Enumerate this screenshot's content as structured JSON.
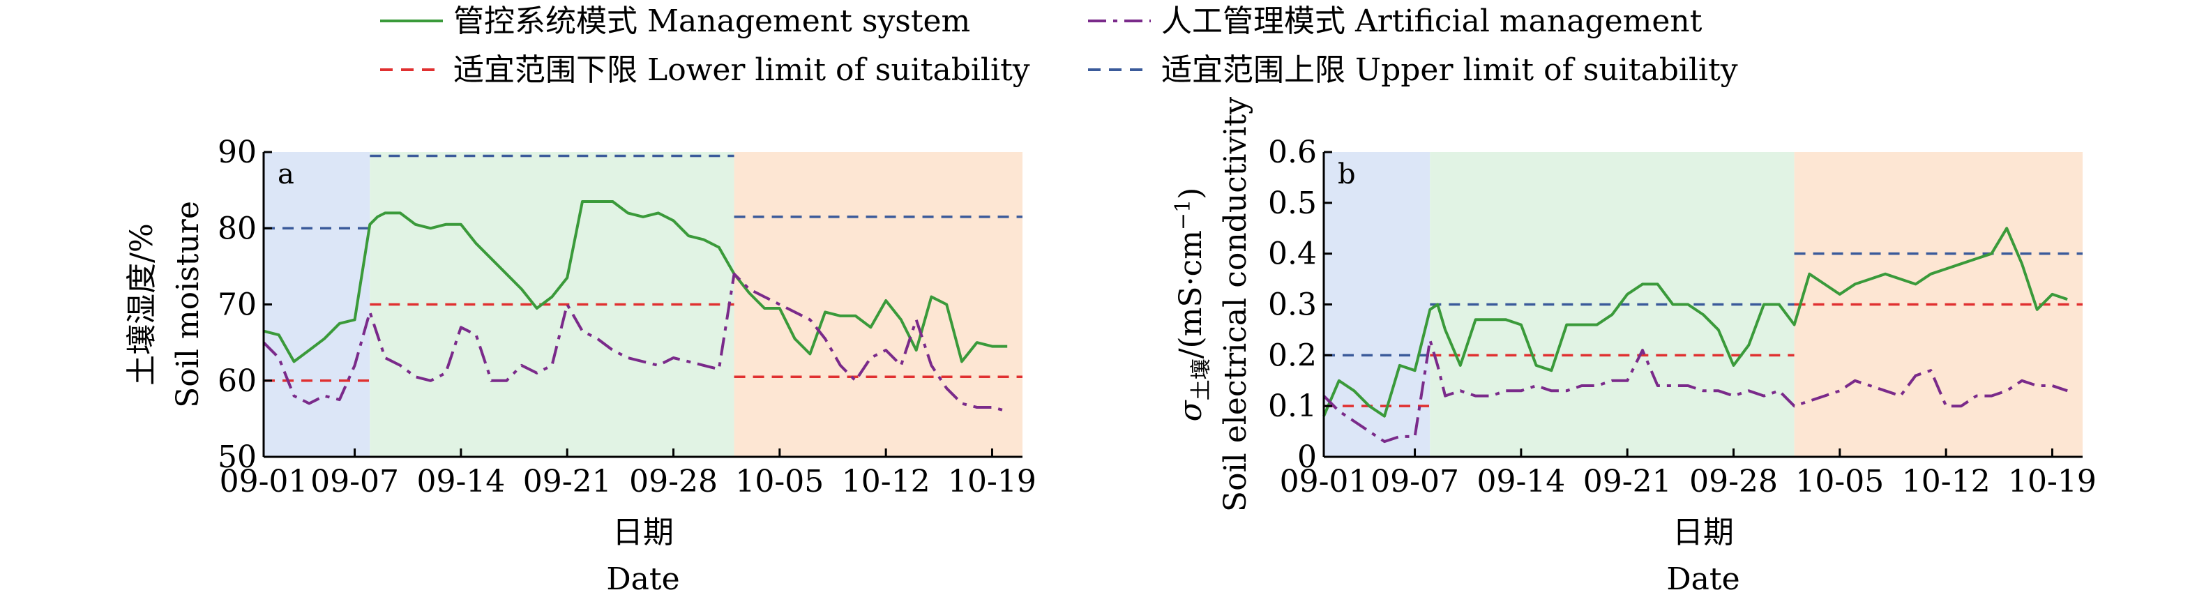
{
  "legend": [
    {
      "label": "管控系统模式  Management system",
      "color": "#3a9a3a",
      "dash": "solid"
    },
    {
      "label": "人工管理模式 Artificial management",
      "color": "#7a2a8a",
      "dash": "dashdot"
    },
    {
      "label": "适宜范围下限 Lower limit of suitability",
      "color": "#e03030",
      "dash": "dashed"
    },
    {
      "label": "适宜范围上限 Upper limit of suitability",
      "color": "#3a5a9a",
      "dash": "dashed"
    }
  ],
  "chart_data": [
    {
      "type": "line",
      "panel_label": "a",
      "ylabel_cn": "土壤湿度/%",
      "ylabel_en": "Soil moisture",
      "xlabel_cn": "日期",
      "xlabel_en": "Date",
      "xlim": [
        0,
        50
      ],
      "ylim": [
        50,
        90
      ],
      "yticks": [
        50,
        60,
        70,
        80,
        90
      ],
      "xticks": [
        0,
        6,
        13,
        20,
        27,
        34,
        41,
        48
      ],
      "xticklabels": [
        "09-01",
        "09-07",
        "09-14",
        "09-21",
        "09-28",
        "10-05",
        "10-12",
        "10-19"
      ],
      "stage_backgrounds": [
        {
          "from": 0,
          "to": 7,
          "color": "#dce6f7"
        },
        {
          "from": 7,
          "to": 31,
          "color": "#e1f3e4"
        },
        {
          "from": 31,
          "to": 50,
          "color": "#fde6d3"
        }
      ],
      "series": [
        {
          "name": "管控系统模式  Management system",
          "color": "#3a9a3a",
          "x": [
            0,
            1,
            2,
            3,
            4,
            5,
            6,
            7,
            7.5,
            8,
            9,
            10,
            11,
            12,
            13,
            14,
            15,
            16,
            17,
            18,
            19,
            20,
            21,
            22,
            23,
            24,
            25,
            26,
            27,
            28,
            29,
            30,
            31,
            32,
            33,
            34,
            35,
            36,
            37,
            38,
            39,
            40,
            41,
            42,
            43,
            44,
            45,
            46,
            47,
            48,
            49
          ],
          "values": [
            66.5,
            66,
            62.5,
            64,
            65.5,
            67.5,
            68,
            80.5,
            81.5,
            82,
            82,
            80.5,
            80,
            80.5,
            80.5,
            78,
            76,
            74,
            72,
            69.5,
            71,
            73.5,
            83.5,
            83.5,
            83.5,
            82,
            81.5,
            82,
            81,
            79,
            78.5,
            77.5,
            74,
            71.5,
            69.5,
            69.5,
            65.5,
            63.5,
            69,
            68.5,
            68.5,
            67,
            70.5,
            68,
            64,
            71,
            70,
            62.5,
            65,
            64.5,
            64.5
          ]
        },
        {
          "name": "人工管理模式 Artificial management",
          "color": "#7a2a8a",
          "x": [
            0,
            1,
            2,
            3,
            4,
            5,
            6,
            7,
            7.5,
            8,
            9,
            10,
            11,
            12,
            13,
            14,
            15,
            16,
            17,
            18,
            19,
            20,
            21,
            22,
            23,
            24,
            25,
            26,
            27,
            28,
            29,
            30,
            31,
            32,
            33,
            34,
            35,
            36,
            37,
            38,
            39,
            40,
            41,
            42,
            43,
            44,
            45,
            46,
            47,
            48,
            49
          ],
          "values": [
            65,
            63,
            58,
            57,
            58,
            57.5,
            62,
            69,
            66,
            63,
            62,
            60.5,
            60,
            61,
            67,
            66,
            60,
            60,
            62,
            61,
            62,
            70,
            66.5,
            65.5,
            64,
            63,
            62.5,
            62,
            63,
            62.5,
            62,
            61.5,
            74,
            72,
            71,
            70,
            69,
            68,
            65.5,
            62,
            60,
            63,
            64,
            62,
            68,
            62,
            59,
            57,
            56.5,
            56.5,
            56
          ]
        }
      ],
      "reference_lines": [
        {
          "name": "适宜范围下限 Lower limit of suitability",
          "color": "#e03030",
          "segments": [
            [
              0,
              7,
              60
            ],
            [
              7,
              31,
              70
            ],
            [
              31,
              50,
              60.5
            ]
          ]
        },
        {
          "name": "适宜范围上限 Upper limit of suitability",
          "color": "#3a5a9a",
          "segments": [
            [
              0,
              7,
              80
            ],
            [
              7,
              31,
              89.5
            ],
            [
              31,
              50,
              81.5
            ]
          ]
        }
      ]
    },
    {
      "type": "line",
      "panel_label": "b",
      "ylabel_sigma": "σ",
      "ylabel_sub": "土壤",
      "ylabel_unit": "/(mS·cm",
      "ylabel_sup": "−1",
      "ylabel_close": ")",
      "ylabel_en": "Soil electrical conductivity",
      "xlabel_cn": "日期",
      "xlabel_en": "Date",
      "xlim": [
        0,
        50
      ],
      "ylim": [
        0,
        0.6
      ],
      "yticks": [
        0,
        0.1,
        0.2,
        0.3,
        0.4,
        0.5,
        0.6
      ],
      "yticklabels": [
        "0",
        "0.1",
        "0.2",
        "0.3",
        "0.4",
        "0.5",
        "0.6"
      ],
      "xticks": [
        0,
        6,
        13,
        20,
        27,
        34,
        41,
        48
      ],
      "xticklabels": [
        "09-01",
        "09-07",
        "09-14",
        "09-21",
        "09-28",
        "10-05",
        "10-12",
        "10-19"
      ],
      "stage_backgrounds": [
        {
          "from": 0,
          "to": 7,
          "color": "#dce6f7"
        },
        {
          "from": 7,
          "to": 31,
          "color": "#e1f3e4"
        },
        {
          "from": 31,
          "to": 50,
          "color": "#fde6d3"
        }
      ],
      "series": [
        {
          "name": "管控系统模式  Management system",
          "color": "#3a9a3a",
          "x": [
            0,
            1,
            2,
            3,
            4,
            5,
            6,
            7,
            7.5,
            8,
            9,
            10,
            11,
            12,
            13,
            14,
            15,
            16,
            17,
            18,
            19,
            20,
            21,
            22,
            23,
            24,
            25,
            26,
            27,
            28,
            29,
            30,
            31,
            32,
            33,
            34,
            35,
            36,
            37,
            38,
            39,
            40,
            41,
            42,
            43,
            44,
            45,
            46,
            47,
            48,
            49
          ],
          "values": [
            0.08,
            0.15,
            0.13,
            0.1,
            0.08,
            0.18,
            0.17,
            0.29,
            0.3,
            0.25,
            0.18,
            0.27,
            0.27,
            0.27,
            0.26,
            0.18,
            0.17,
            0.26,
            0.26,
            0.26,
            0.28,
            0.32,
            0.34,
            0.34,
            0.3,
            0.3,
            0.28,
            0.25,
            0.18,
            0.22,
            0.3,
            0.3,
            0.26,
            0.36,
            0.34,
            0.32,
            0.34,
            0.35,
            0.36,
            0.35,
            0.34,
            0.36,
            0.37,
            0.38,
            0.39,
            0.4,
            0.45,
            0.38,
            0.29,
            0.32,
            0.31
          ]
        },
        {
          "name": "人工管理模式 Artificial management",
          "color": "#7a2a8a",
          "x": [
            0,
            1,
            2,
            3,
            4,
            5,
            6,
            7,
            7.5,
            8,
            9,
            10,
            11,
            12,
            13,
            14,
            15,
            16,
            17,
            18,
            19,
            20,
            21,
            22,
            23,
            24,
            25,
            26,
            27,
            28,
            29,
            30,
            31,
            32,
            33,
            34,
            35,
            36,
            37,
            38,
            39,
            40,
            41,
            42,
            43,
            44,
            45,
            46,
            47,
            48,
            49
          ],
          "values": [
            0.12,
            0.09,
            0.07,
            0.05,
            0.03,
            0.04,
            0.04,
            0.23,
            0.18,
            0.12,
            0.13,
            0.12,
            0.12,
            0.13,
            0.13,
            0.14,
            0.13,
            0.13,
            0.14,
            0.14,
            0.15,
            0.15,
            0.21,
            0.14,
            0.14,
            0.14,
            0.13,
            0.13,
            0.12,
            0.13,
            0.12,
            0.13,
            0.1,
            0.11,
            0.12,
            0.13,
            0.15,
            0.14,
            0.13,
            0.12,
            0.16,
            0.17,
            0.1,
            0.1,
            0.12,
            0.12,
            0.13,
            0.15,
            0.14,
            0.14,
            0.13
          ]
        }
      ],
      "reference_lines": [
        {
          "name": "适宜范围下限 Lower limit of suitability",
          "color": "#e03030",
          "segments": [
            [
              0,
              7,
              0.1
            ],
            [
              7,
              31,
              0.2
            ],
            [
              31,
              50,
              0.3
            ]
          ]
        },
        {
          "name": "适宜范围上限 Upper limit of suitability",
          "color": "#3a5a9a",
          "segments": [
            [
              0,
              7,
              0.2
            ],
            [
              7,
              31,
              0.3
            ],
            [
              31,
              50,
              0.4
            ]
          ]
        }
      ]
    }
  ]
}
